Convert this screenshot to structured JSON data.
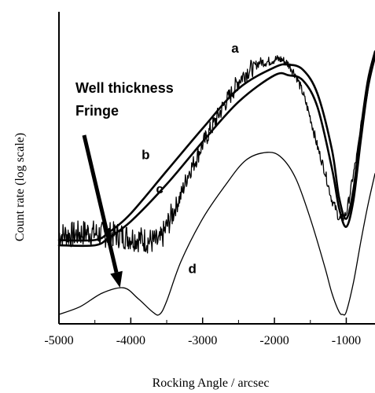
{
  "chart_data": {
    "type": "line",
    "xlabel": "Rocking Angle / arcsec",
    "ylabel": "Count rate (log scale)",
    "xlim": [
      -5000,
      -600
    ],
    "xticks": [
      -5000,
      -4000,
      -3000,
      -2000,
      -1000
    ],
    "xtick_labels": [
      "-5000",
      "-4000",
      "-3000",
      "-2000",
      "-1000"
    ],
    "y_scale": "log",
    "y_tick_labels": [],
    "grid": false,
    "series": [
      {
        "name": "a",
        "style": "noisy",
        "x": [
          -5000,
          -4800,
          -4600,
          -4400,
          -4200,
          -4000,
          -3800,
          -3600,
          -3500,
          -3400,
          -3300,
          -3200,
          -3100,
          -3000,
          -2900,
          -2800,
          -2700,
          -2600,
          -2500,
          -2400,
          -2300,
          -2200,
          -2100,
          -2000,
          -1900,
          -1800,
          -1700,
          -1600,
          -1500,
          -1400,
          -1300,
          -1200,
          -1150,
          -1100,
          -1050,
          -1000,
          -950,
          -900,
          -850,
          -800,
          -750,
          -700,
          -650,
          -600
        ],
        "y": [
          0.3,
          0.3,
          0.31,
          0.3,
          0.3,
          0.29,
          0.28,
          0.27,
          0.33,
          0.39,
          0.45,
          0.53,
          0.58,
          0.64,
          0.69,
          0.74,
          0.79,
          0.83,
          0.88,
          0.91,
          0.93,
          0.95,
          0.95,
          0.96,
          0.96,
          0.94,
          0.9,
          0.83,
          0.74,
          0.63,
          0.54,
          0.43,
          0.4,
          0.36,
          0.36,
          0.38,
          0.45,
          0.53,
          0.6,
          0.7,
          0.77,
          0.85,
          0.93,
          0.98
        ]
      },
      {
        "name": "b",
        "style": "smooth",
        "x": [
          -5000,
          -4500,
          -4300,
          -4000,
          -3500,
          -3000,
          -2500,
          -2000,
          -1800,
          -1600,
          -1400,
          -1200,
          -1100,
          -1000,
          -900,
          -800,
          -700,
          -600
        ],
        "y": [
          0.28,
          0.28,
          0.31,
          0.38,
          0.54,
          0.7,
          0.85,
          0.93,
          0.94,
          0.92,
          0.83,
          0.62,
          0.44,
          0.36,
          0.47,
          0.69,
          0.88,
          0.99
        ]
      },
      {
        "name": "c",
        "style": "smooth",
        "x": [
          -5000,
          -4500,
          -4300,
          -4000,
          -3500,
          -3000,
          -2500,
          -2000,
          -1800,
          -1600,
          -1400,
          -1200,
          -1100,
          -1000,
          -900,
          -800,
          -700,
          -600
        ],
        "y": [
          0.26,
          0.26,
          0.29,
          0.35,
          0.49,
          0.65,
          0.8,
          0.9,
          0.9,
          0.88,
          0.78,
          0.55,
          0.4,
          0.33,
          0.43,
          0.65,
          0.85,
          0.97
        ]
      },
      {
        "name": "d",
        "style": "thin",
        "x": [
          -5000,
          -4700,
          -4400,
          -4100,
          -3900,
          -3700,
          -3600,
          -3500,
          -3300,
          -3000,
          -2700,
          -2400,
          -2100,
          -1900,
          -1700,
          -1500,
          -1300,
          -1200,
          -1100,
          -1050,
          -1000,
          -900,
          -800,
          -700,
          -600
        ],
        "y": [
          0.0,
          0.03,
          0.08,
          0.1,
          0.06,
          0.01,
          0.0,
          0.05,
          0.2,
          0.36,
          0.48,
          0.58,
          0.61,
          0.59,
          0.51,
          0.36,
          0.18,
          0.08,
          0.01,
          0.0,
          0.01,
          0.12,
          0.27,
          0.41,
          0.53
        ]
      }
    ],
    "series_labels": [
      "a",
      "b",
      "c",
      "d"
    ],
    "annotation": {
      "lines": [
        "Well thickness",
        "Fringe"
      ],
      "arrow_from_x": -4650,
      "arrow_to_x": -4150
    }
  }
}
